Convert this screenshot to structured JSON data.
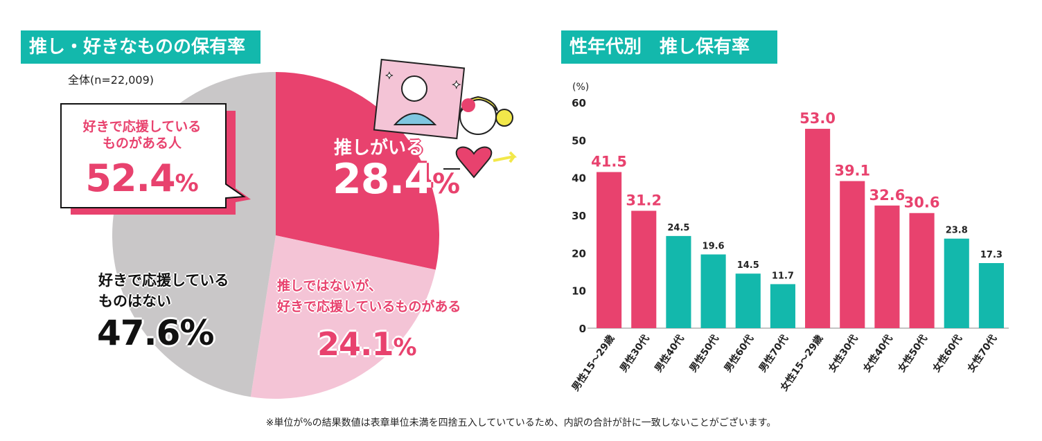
{
  "left_panel": {
    "title": "推し・好きなものの保有率",
    "sample": "全体(n=22,009)",
    "callout": {
      "label_line1": "好きで応援している",
      "label_line2": "ものがある人",
      "value": "52.4",
      "unit": "%"
    },
    "slices": [
      {
        "label_line1": "推しがいる",
        "label_line2": "",
        "value": "28.4",
        "unit": "%",
        "color": "#e8426e"
      },
      {
        "label_line1": "推しではないが、",
        "label_line2": "好きで応援しているものがある",
        "value": "24.1",
        "unit": "%",
        "color": "#f4c4d6"
      },
      {
        "label_line1": "好きで応援している",
        "label_line2": "ものはない",
        "value": "47.6",
        "unit": "%",
        "color": "#c9c7c8"
      }
    ]
  },
  "right_panel": {
    "title": "性年代別　推し保有率"
  },
  "chart_data": {
    "type": "bar",
    "title": "性年代別　推し保有率",
    "ylabel": "(%)",
    "ylim": [
      0,
      60
    ],
    "yticks": [
      0,
      10,
      20,
      30,
      40,
      50,
      60
    ],
    "categories": [
      "男性15～29歳",
      "男性30代",
      "男性40代",
      "男性50代",
      "男性60代",
      "男性70代",
      "女性15～29歳",
      "女性30代",
      "女性40代",
      "女性50代",
      "女性60代",
      "女性70代"
    ],
    "values": [
      41.5,
      31.2,
      24.5,
      19.6,
      14.5,
      11.7,
      53.0,
      39.1,
      32.6,
      30.6,
      23.8,
      17.3
    ],
    "value_labels": [
      "41.5",
      "31.2",
      "24.5",
      "19.6",
      "14.5",
      "11.7",
      "53.0",
      "39.1",
      "32.6",
      "30.6",
      "23.8",
      "17.3"
    ],
    "highlight": [
      true,
      true,
      false,
      false,
      false,
      false,
      true,
      true,
      true,
      true,
      false,
      false
    ],
    "colors": {
      "highlight": "#e8426e",
      "normal": "#13b8ac"
    }
  },
  "footnote": "※単位が%の結果数値は表章単位未満を四捨五入していているため、内訳の合計が計に一致しないことがございます。"
}
